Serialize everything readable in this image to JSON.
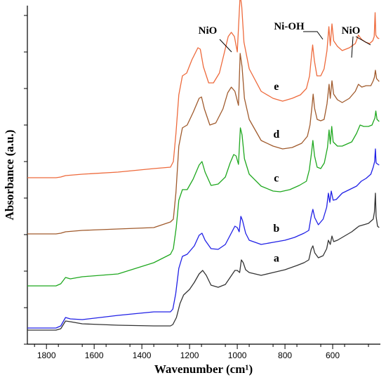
{
  "chart_data": {
    "type": "line",
    "title": "",
    "xlabel": "Wavenumber (cm¹)",
    "ylabel": "Absorbance (a.u.)",
    "xlim": [
      1880,
      400
    ],
    "x_reversed": true,
    "x_ticks": [
      1800,
      1600,
      1400,
      1200,
      1000,
      800,
      600
    ],
    "y_ticks_labeled": false,
    "legend": "none",
    "grid": false,
    "series": [
      {
        "name": "a",
        "color": "#333333",
        "offset": 0,
        "points": [
          [
            1880,
            0
          ],
          [
            1760,
            0
          ],
          [
            1740,
            2
          ],
          [
            1720,
            13
          ],
          [
            1700,
            12
          ],
          [
            1650,
            9
          ],
          [
            1500,
            7
          ],
          [
            1350,
            6
          ],
          [
            1280,
            6
          ],
          [
            1270,
            8
          ],
          [
            1255,
            18
          ],
          [
            1240,
            38
          ],
          [
            1225,
            50
          ],
          [
            1200,
            58
          ],
          [
            1180,
            68
          ],
          [
            1160,
            80
          ],
          [
            1145,
            85
          ],
          [
            1130,
            78
          ],
          [
            1110,
            64
          ],
          [
            1080,
            61
          ],
          [
            1050,
            65
          ],
          [
            1030,
            75
          ],
          [
            1010,
            85
          ],
          [
            1000,
            85
          ],
          [
            990,
            82
          ],
          [
            983,
            100
          ],
          [
            975,
            96
          ],
          [
            965,
            86
          ],
          [
            950,
            82
          ],
          [
            900,
            78
          ],
          [
            850,
            82
          ],
          [
            800,
            86
          ],
          [
            750,
            92
          ],
          [
            720,
            96
          ],
          [
            700,
            100
          ],
          [
            690,
            115
          ],
          [
            683,
            120
          ],
          [
            675,
            110
          ],
          [
            660,
            103
          ],
          [
            640,
            106
          ],
          [
            625,
            116
          ],
          [
            618,
            128
          ],
          [
            610,
            122
          ],
          [
            603,
            134
          ],
          [
            596,
            126
          ],
          [
            580,
            128
          ],
          [
            560,
            132
          ],
          [
            520,
            140
          ],
          [
            490,
            148
          ],
          [
            470,
            150
          ],
          [
            450,
            152
          ],
          [
            430,
            158
          ],
          [
            425,
            168
          ],
          [
            421,
            195
          ],
          [
            418,
            162
          ],
          [
            412,
            148
          ],
          [
            405,
            146
          ]
        ]
      },
      {
        "name": "b",
        "color": "#2020e6",
        "offset": 0,
        "points": [
          [
            1880,
            3
          ],
          [
            1760,
            3
          ],
          [
            1740,
            6
          ],
          [
            1720,
            18
          ],
          [
            1700,
            16
          ],
          [
            1650,
            15
          ],
          [
            1500,
            21
          ],
          [
            1350,
            26
          ],
          [
            1280,
            26
          ],
          [
            1270,
            30
          ],
          [
            1258,
            52
          ],
          [
            1245,
            88
          ],
          [
            1230,
            105
          ],
          [
            1210,
            108
          ],
          [
            1180,
            120
          ],
          [
            1160,
            135
          ],
          [
            1148,
            138
          ],
          [
            1135,
            128
          ],
          [
            1110,
            116
          ],
          [
            1080,
            115
          ],
          [
            1050,
            122
          ],
          [
            1030,
            135
          ],
          [
            1010,
            148
          ],
          [
            1000,
            146
          ],
          [
            992,
            140
          ],
          [
            985,
            162
          ],
          [
            978,
            156
          ],
          [
            965,
            138
          ],
          [
            950,
            128
          ],
          [
            900,
            122
          ],
          [
            850,
            125
          ],
          [
            800,
            128
          ],
          [
            760,
            132
          ],
          [
            720,
            138
          ],
          [
            700,
            142
          ],
          [
            690,
            162
          ],
          [
            683,
            172
          ],
          [
            675,
            160
          ],
          [
            660,
            150
          ],
          [
            640,
            158
          ],
          [
            625,
            175
          ],
          [
            618,
            195
          ],
          [
            612,
            182
          ],
          [
            606,
            198
          ],
          [
            598,
            185
          ],
          [
            585,
            186
          ],
          [
            560,
            195
          ],
          [
            530,
            200
          ],
          [
            500,
            205
          ],
          [
            480,
            212
          ],
          [
            460,
            216
          ],
          [
            440,
            222
          ],
          [
            430,
            232
          ],
          [
            424,
            240
          ],
          [
            421,
            258
          ],
          [
            418,
            238
          ],
          [
            410,
            236
          ],
          [
            405,
            235
          ]
        ]
      },
      {
        "name": "c",
        "color": "#1fa81f",
        "offset": 0,
        "points": [
          [
            1880,
            63
          ],
          [
            1760,
            63
          ],
          [
            1740,
            66
          ],
          [
            1720,
            75
          ],
          [
            1700,
            73
          ],
          [
            1650,
            76
          ],
          [
            1500,
            80
          ],
          [
            1350,
            96
          ],
          [
            1280,
            108
          ],
          [
            1268,
            116
          ],
          [
            1256,
            146
          ],
          [
            1245,
            185
          ],
          [
            1230,
            200
          ],
          [
            1210,
            200
          ],
          [
            1185,
            215
          ],
          [
            1160,
            235
          ],
          [
            1148,
            240
          ],
          [
            1135,
            225
          ],
          [
            1110,
            206
          ],
          [
            1080,
            208
          ],
          [
            1050,
            218
          ],
          [
            1030,
            238
          ],
          [
            1015,
            250
          ],
          [
            1005,
            248
          ],
          [
            995,
            236
          ],
          [
            987,
            288
          ],
          [
            980,
            278
          ],
          [
            970,
            244
          ],
          [
            950,
            222
          ],
          [
            900,
            205
          ],
          [
            850,
            198
          ],
          [
            820,
            197
          ],
          [
            780,
            200
          ],
          [
            740,
            206
          ],
          [
            710,
            212
          ],
          [
            698,
            228
          ],
          [
            689,
            252
          ],
          [
            683,
            270
          ],
          [
            676,
            248
          ],
          [
            665,
            232
          ],
          [
            650,
            230
          ],
          [
            635,
            238
          ],
          [
            622,
            260
          ],
          [
            615,
            285
          ],
          [
            610,
            265
          ],
          [
            604,
            290
          ],
          [
            598,
            268
          ],
          [
            580,
            262
          ],
          [
            560,
            262
          ],
          [
            520,
            268
          ],
          [
            500,
            280
          ],
          [
            485,
            292
          ],
          [
            470,
            290
          ],
          [
            450,
            290
          ],
          [
            435,
            292
          ],
          [
            428,
            298
          ],
          [
            423,
            302
          ],
          [
            419,
            312
          ],
          [
            414,
            300
          ],
          [
            408,
            298
          ],
          [
            405,
            297
          ]
        ]
      },
      {
        "name": "d",
        "color": "#a05a2c",
        "offset": 0,
        "points": [
          [
            1880,
            137
          ],
          [
            1760,
            137
          ],
          [
            1740,
            138
          ],
          [
            1720,
            140
          ],
          [
            1650,
            142
          ],
          [
            1500,
            144
          ],
          [
            1350,
            146
          ],
          [
            1280,
            154
          ],
          [
            1268,
            158
          ],
          [
            1257,
            196
          ],
          [
            1245,
            262
          ],
          [
            1230,
            288
          ],
          [
            1210,
            292
          ],
          [
            1185,
            310
          ],
          [
            1160,
            330
          ],
          [
            1150,
            332
          ],
          [
            1138,
            315
          ],
          [
            1115,
            292
          ],
          [
            1090,
            295
          ],
          [
            1060,
            315
          ],
          [
            1040,
            338
          ],
          [
            1025,
            346
          ],
          [
            1010,
            340
          ],
          [
            995,
            320
          ],
          [
            988,
            394
          ],
          [
            980,
            375
          ],
          [
            970,
            330
          ],
          [
            950,
            300
          ],
          [
            900,
            270
          ],
          [
            850,
            262
          ],
          [
            810,
            258
          ],
          [
            770,
            260
          ],
          [
            730,
            266
          ],
          [
            706,
            276
          ],
          [
            695,
            292
          ],
          [
            687,
            318
          ],
          [
            682,
            336
          ],
          [
            676,
            316
          ],
          [
            665,
            300
          ],
          [
            650,
            298
          ],
          [
            636,
            300
          ],
          [
            624,
            322
          ],
          [
            615,
            350
          ],
          [
            610,
            330
          ],
          [
            603,
            355
          ],
          [
            596,
            336
          ],
          [
            580,
            328
          ],
          [
            560,
            324
          ],
          [
            530,
            330
          ],
          [
            505,
            340
          ],
          [
            492,
            350
          ],
          [
            478,
            346
          ],
          [
            460,
            348
          ],
          [
            440,
            348
          ],
          [
            430,
            355
          ],
          [
            425,
            360
          ],
          [
            421,
            370
          ],
          [
            416,
            358
          ],
          [
            408,
            355
          ],
          [
            405,
            354
          ]
        ]
      },
      {
        "name": "e",
        "color": "#ee6a3c",
        "offset": 0,
        "points": [
          [
            1880,
            217
          ],
          [
            1760,
            217
          ],
          [
            1740,
            218
          ],
          [
            1720,
            220
          ],
          [
            1650,
            222
          ],
          [
            1500,
            225
          ],
          [
            1350,
            230
          ],
          [
            1280,
            232
          ],
          [
            1268,
            240
          ],
          [
            1257,
            280
          ],
          [
            1245,
            335
          ],
          [
            1230,
            362
          ],
          [
            1212,
            366
          ],
          [
            1190,
            385
          ],
          [
            1165,
            402
          ],
          [
            1155,
            400
          ],
          [
            1142,
            375
          ],
          [
            1120,
            352
          ],
          [
            1100,
            352
          ],
          [
            1075,
            366
          ],
          [
            1055,
            394
          ],
          [
            1038,
            418
          ],
          [
            1025,
            424
          ],
          [
            1012,
            418
          ],
          [
            1000,
            396
          ],
          [
            988,
            478
          ],
          [
            981,
            460
          ],
          [
            972,
            410
          ],
          [
            950,
            372
          ],
          [
            900,
            340
          ],
          [
            850,
            330
          ],
          [
            810,
            326
          ],
          [
            770,
            330
          ],
          [
            735,
            335
          ],
          [
            710,
            344
          ],
          [
            697,
            362
          ],
          [
            689,
            390
          ],
          [
            684,
            406
          ],
          [
            677,
            384
          ],
          [
            666,
            362
          ],
          [
            650,
            362
          ],
          [
            636,
            372
          ],
          [
            624,
            398
          ],
          [
            616,
            432
          ],
          [
            610,
            405
          ],
          [
            603,
            436
          ],
          [
            596,
            412
          ],
          [
            580,
            404
          ],
          [
            560,
            398
          ],
          [
            530,
            402
          ],
          [
            505,
            408
          ],
          [
            492,
            420
          ],
          [
            479,
            414
          ],
          [
            462,
            410
          ],
          [
            445,
            408
          ],
          [
            432,
            412
          ],
          [
            426,
            418
          ],
          [
            422,
            452
          ],
          [
            419,
            420
          ],
          [
            412,
            416
          ],
          [
            405,
            415
          ]
        ]
      }
    ],
    "curve_labels": [
      {
        "text": "a",
        "series": "a"
      },
      {
        "text": "b",
        "series": "b"
      },
      {
        "text": "c",
        "series": "c"
      },
      {
        "text": "d",
        "series": "d"
      },
      {
        "text": "e",
        "series": "e"
      }
    ],
    "annotations": [
      {
        "text": "NiO",
        "points_to": 1015
      },
      {
        "text": "Ni-OH",
        "points_to": 612
      },
      {
        "text": "NiO",
        "points_to": 485
      }
    ]
  }
}
